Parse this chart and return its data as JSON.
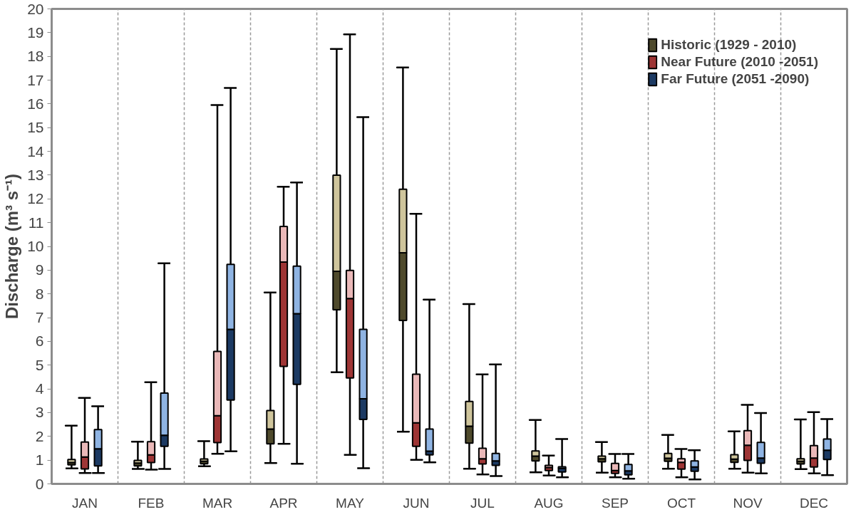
{
  "chart_data": {
    "type": "box",
    "ylabel": "Discharge (m³ s⁻¹)",
    "categories": [
      "JAN",
      "FEB",
      "MAR",
      "APR",
      "MAY",
      "JUN",
      "JUL",
      "AUG",
      "SEP",
      "OCT",
      "NOV",
      "DEC"
    ],
    "ylim": [
      0,
      20
    ],
    "yticks": [
      0,
      1,
      2,
      3,
      4,
      5,
      6,
      7,
      8,
      9,
      10,
      11,
      12,
      13,
      14,
      15,
      16,
      17,
      18,
      19,
      20
    ],
    "grid": "x",
    "legend": "top right",
    "series": [
      {
        "name": "Historic (1929 - 2010)",
        "color": "#cfc59c",
        "colors": [
          "#4f4a2c",
          "#4f4a2c",
          "#4f4a2c",
          "#4f4a2c",
          "#4f4a2c",
          "#4f4a2c",
          "#4f4a2c",
          "#4f4a2c",
          "#4f4a2c",
          "#4f4a2c",
          "#4f4a2c",
          "#4f4a2c"
        ],
        "boxes": [
          {
            "low": 0.65,
            "q1": 0.8,
            "median": 0.9,
            "q3": 1.03,
            "high": 2.45
          },
          {
            "low": 0.63,
            "q1": 0.76,
            "median": 0.88,
            "q3": 0.99,
            "high": 1.78
          },
          {
            "low": 0.74,
            "q1": 0.85,
            "median": 0.95,
            "q3": 1.05,
            "high": 1.8
          },
          {
            "low": 0.88,
            "q1": 1.69,
            "median": 2.31,
            "q3": 3.09,
            "high": 8.06
          },
          {
            "low": 4.7,
            "q1": 7.33,
            "median": 8.95,
            "q3": 13.0,
            "high": 18.31
          },
          {
            "low": 2.2,
            "q1": 6.88,
            "median": 9.73,
            "q3": 12.41,
            "high": 17.53
          },
          {
            "low": 0.64,
            "q1": 1.72,
            "median": 2.43,
            "q3": 3.47,
            "high": 7.57
          },
          {
            "low": 0.49,
            "q1": 0.97,
            "median": 1.17,
            "q3": 1.39,
            "high": 2.69
          },
          {
            "low": 0.47,
            "q1": 0.93,
            "median": 1.06,
            "q3": 1.17,
            "high": 1.76
          },
          {
            "low": 0.64,
            "q1": 0.95,
            "median": 1.08,
            "q3": 1.28,
            "high": 2.06
          },
          {
            "low": 0.64,
            "q1": 0.91,
            "median": 1.04,
            "q3": 1.23,
            "high": 2.21
          },
          {
            "low": 0.62,
            "q1": 0.84,
            "median": 0.95,
            "q3": 1.06,
            "high": 2.71
          }
        ]
      },
      {
        "name": "Near Future (2010 -2051)",
        "color": "#eab8b8",
        "colors": [
          "#9e3535",
          "#9e3535",
          "#9e3535",
          "#9e3535",
          "#9e3535",
          "#9e3535",
          "#9e3535",
          "#9e3535",
          "#9e3535",
          "#9e3535",
          "#9e3535",
          "#9e3535"
        ],
        "boxes": [
          {
            "low": 0.46,
            "q1": 0.63,
            "median": 1.13,
            "q3": 1.76,
            "high": 3.62
          },
          {
            "low": 0.6,
            "q1": 0.9,
            "median": 1.22,
            "q3": 1.78,
            "high": 4.28
          },
          {
            "low": 1.27,
            "q1": 1.74,
            "median": 2.87,
            "q3": 5.58,
            "high": 15.95
          },
          {
            "low": 1.69,
            "q1": 4.95,
            "median": 9.34,
            "q3": 10.84,
            "high": 12.51
          },
          {
            "low": 1.22,
            "q1": 4.46,
            "median": 7.8,
            "q3": 8.99,
            "high": 18.93
          },
          {
            "low": 1.01,
            "q1": 1.58,
            "median": 2.57,
            "q3": 4.62,
            "high": 11.37
          },
          {
            "low": 0.4,
            "q1": 0.84,
            "median": 1.06,
            "q3": 1.5,
            "high": 4.61
          },
          {
            "low": 0.35,
            "q1": 0.56,
            "median": 0.69,
            "q3": 0.78,
            "high": 1.19
          },
          {
            "low": 0.28,
            "q1": 0.44,
            "median": 0.56,
            "q3": 0.86,
            "high": 1.26
          },
          {
            "low": 0.28,
            "q1": 0.62,
            "median": 0.91,
            "q3": 1.06,
            "high": 1.47
          },
          {
            "low": 0.47,
            "q1": 0.99,
            "median": 1.63,
            "q3": 2.24,
            "high": 3.33
          },
          {
            "low": 0.44,
            "q1": 0.71,
            "median": 1.09,
            "q3": 1.61,
            "high": 3.02
          }
        ]
      },
      {
        "name": "Far Future (2051 -2090)",
        "color": "#8fb4e3",
        "colors": [
          "#1c3a63",
          "#1c3a63",
          "#1c3a63",
          "#1c3a63",
          "#1c3a63",
          "#1c3a63",
          "#1c3a63",
          "#1c3a63",
          "#1c3a63",
          "#1c3a63",
          "#1c3a63",
          "#1c3a63"
        ],
        "boxes": [
          {
            "low": 0.46,
            "q1": 0.76,
            "median": 1.48,
            "q3": 2.29,
            "high": 3.27
          },
          {
            "low": 0.63,
            "q1": 1.58,
            "median": 2.05,
            "q3": 3.82,
            "high": 9.29
          },
          {
            "low": 1.37,
            "q1": 3.53,
            "median": 6.51,
            "q3": 9.24,
            "high": 16.67
          },
          {
            "low": 0.85,
            "q1": 4.19,
            "median": 7.17,
            "q3": 9.17,
            "high": 12.69
          },
          {
            "low": 0.66,
            "q1": 2.71,
            "median": 3.58,
            "q3": 6.51,
            "high": 15.44
          },
          {
            "low": 0.91,
            "q1": 1.22,
            "median": 1.38,
            "q3": 2.31,
            "high": 7.76
          },
          {
            "low": 0.33,
            "q1": 0.78,
            "median": 0.97,
            "q3": 1.28,
            "high": 5.03
          },
          {
            "low": 0.28,
            "q1": 0.5,
            "median": 0.65,
            "q3": 0.72,
            "high": 1.89
          },
          {
            "low": 0.22,
            "q1": 0.38,
            "median": 0.55,
            "q3": 0.82,
            "high": 1.26
          },
          {
            "low": 0.19,
            "q1": 0.53,
            "median": 0.71,
            "q3": 0.97,
            "high": 1.42
          },
          {
            "low": 0.44,
            "q1": 0.87,
            "median": 1.09,
            "q3": 1.75,
            "high": 2.98
          },
          {
            "low": 0.37,
            "q1": 1.03,
            "median": 1.42,
            "q3": 1.89,
            "high": 2.73
          }
        ]
      }
    ]
  }
}
